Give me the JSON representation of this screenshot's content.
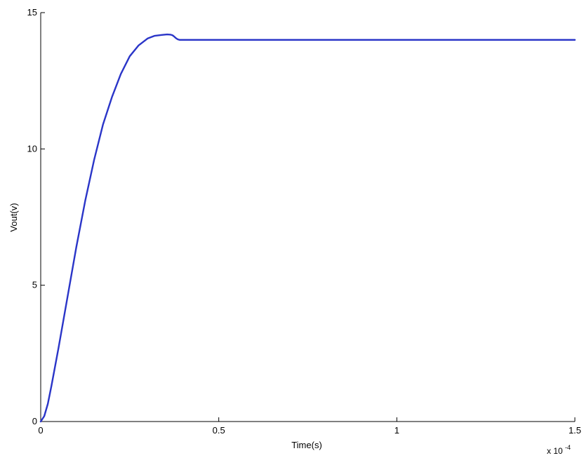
{
  "chart_data": {
    "type": "line",
    "title": "",
    "xlabel": "Time(s)",
    "ylabel": "Vout(v)",
    "x_scale_label": {
      "prefix": "x 10",
      "exponent": "-4"
    },
    "xlim": [
      0,
      1.5
    ],
    "ylim": [
      0,
      15
    ],
    "x_ticks": [
      0,
      0.5,
      1,
      1.5
    ],
    "x_tick_labels": [
      "0",
      "0.5",
      "1",
      "1.5"
    ],
    "y_ticks": [
      0,
      5,
      10,
      15
    ],
    "y_tick_labels": [
      "0",
      "5",
      "10",
      "15"
    ],
    "grid": false,
    "legend": "none",
    "series": [
      {
        "color": "#2a35c8",
        "x": [
          0,
          0.01,
          0.02,
          0.03,
          0.05,
          0.075,
          0.1,
          0.125,
          0.15,
          0.175,
          0.2,
          0.225,
          0.25,
          0.275,
          0.3,
          0.32,
          0.34,
          0.355,
          0.365,
          0.37,
          0.375,
          0.38,
          0.385,
          0.39,
          0.395,
          0.4,
          0.5,
          0.75,
          1.0,
          1.25,
          1.5
        ],
        "y": [
          0,
          0.2,
          0.65,
          1.3,
          2.7,
          4.55,
          6.4,
          8.1,
          9.6,
          10.9,
          11.9,
          12.75,
          13.4,
          13.8,
          14.05,
          14.15,
          14.18,
          14.2,
          14.19,
          14.17,
          14.12,
          14.06,
          14.02,
          14.0,
          14.0,
          14.0,
          14.0,
          14.0,
          14.0,
          14.0,
          14.0
        ]
      }
    ]
  }
}
